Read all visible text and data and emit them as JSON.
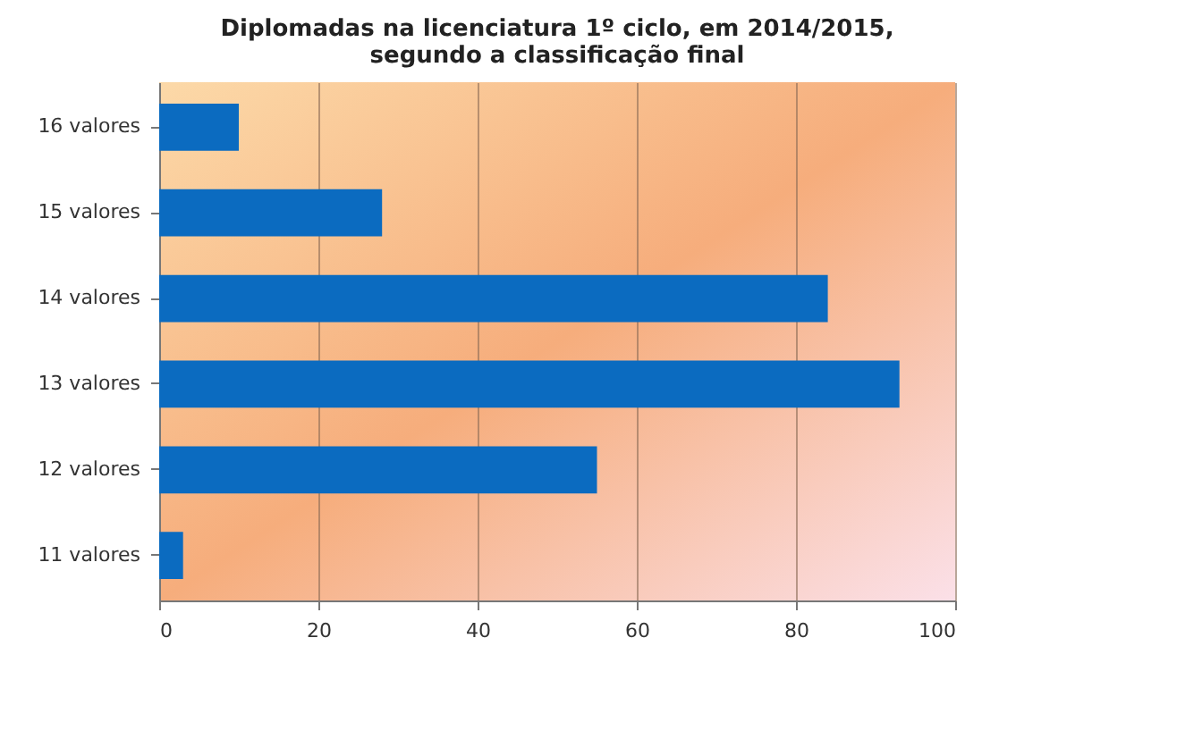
{
  "chart_data": {
    "type": "bar",
    "orientation": "horizontal",
    "title": "Diplomadas na licenciatura 1º ciclo, em 2014/2015,\nsegundo a classificação final",
    "categories": [
      "16 valores",
      "15 valores",
      "14 valores",
      "13 valores",
      "12 valores",
      "11 valores"
    ],
    "values": [
      10,
      28,
      84,
      93,
      55,
      3
    ],
    "color": "#0b6bc0",
    "xlim": [
      0,
      100
    ],
    "xticks": [
      0,
      20,
      40,
      60,
      80,
      100
    ],
    "grid": "x"
  }
}
